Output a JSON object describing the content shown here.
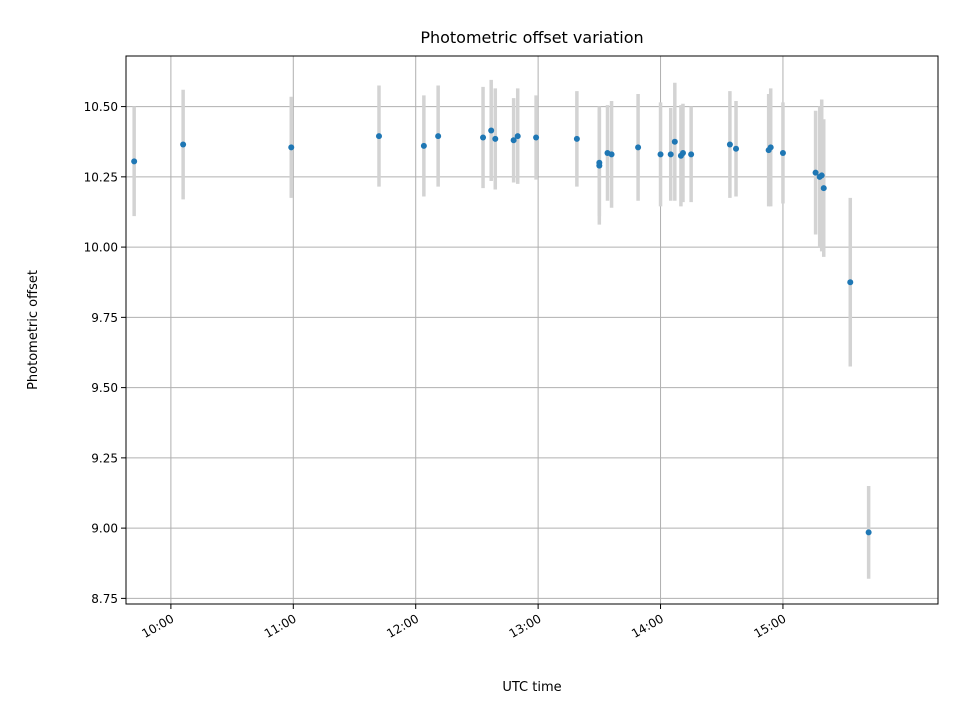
{
  "chart_data": {
    "type": "scatter",
    "title": "Photometric offset variation",
    "xlabel": "UTC time",
    "ylabel": "Photometric offset",
    "xlim": [
      "09:38",
      "16:16"
    ],
    "ylim": [
      8.73,
      10.68
    ],
    "x_ticks": [
      "10:00",
      "11:00",
      "12:00",
      "13:00",
      "14:00",
      "15:00"
    ],
    "y_ticks": [
      "8.75",
      "9.00",
      "9.25",
      "9.50",
      "9.75",
      "10.00",
      "10.25",
      "10.50"
    ],
    "grid": true,
    "colors": {
      "point": "#1f77b4",
      "errorbar": "#d3d3d3"
    },
    "points": [
      {
        "t": "09:42",
        "y": 10.305,
        "err": 0.195
      },
      {
        "t": "10:06",
        "y": 10.365,
        "err": 0.195
      },
      {
        "t": "10:59",
        "y": 10.355,
        "err": 0.18
      },
      {
        "t": "11:42",
        "y": 10.395,
        "err": 0.18
      },
      {
        "t": "12:04",
        "y": 10.36,
        "err": 0.18
      },
      {
        "t": "12:11",
        "y": 10.395,
        "err": 0.18
      },
      {
        "t": "12:33",
        "y": 10.39,
        "err": 0.18
      },
      {
        "t": "12:37",
        "y": 10.415,
        "err": 0.18
      },
      {
        "t": "12:39",
        "y": 10.385,
        "err": 0.18
      },
      {
        "t": "12:48",
        "y": 10.38,
        "err": 0.15
      },
      {
        "t": "12:50",
        "y": 10.395,
        "err": 0.17
      },
      {
        "t": "12:59",
        "y": 10.39,
        "err": 0.15
      },
      {
        "t": "13:19",
        "y": 10.385,
        "err": 0.17
      },
      {
        "t": "13:30",
        "y": 10.29,
        "err": 0.21
      },
      {
        "t": "13:30",
        "y": 10.3,
        "err": 0.19
      },
      {
        "t": "13:34",
        "y": 10.335,
        "err": 0.17
      },
      {
        "t": "13:36",
        "y": 10.33,
        "err": 0.19
      },
      {
        "t": "13:49",
        "y": 10.355,
        "err": 0.19
      },
      {
        "t": "14:00",
        "y": 10.33,
        "err": 0.185
      },
      {
        "t": "14:05",
        "y": 10.33,
        "err": 0.165
      },
      {
        "t": "14:07",
        "y": 10.375,
        "err": 0.21
      },
      {
        "t": "14:10",
        "y": 10.325,
        "err": 0.18
      },
      {
        "t": "14:11",
        "y": 10.335,
        "err": 0.175
      },
      {
        "t": "14:15",
        "y": 10.33,
        "err": 0.17
      },
      {
        "t": "14:34",
        "y": 10.365,
        "err": 0.19
      },
      {
        "t": "14:37",
        "y": 10.35,
        "err": 0.17
      },
      {
        "t": "14:53",
        "y": 10.345,
        "err": 0.2
      },
      {
        "t": "14:54",
        "y": 10.355,
        "err": 0.21
      },
      {
        "t": "15:00",
        "y": 10.335,
        "err": 0.18
      },
      {
        "t": "15:16",
        "y": 10.265,
        "err": 0.22
      },
      {
        "t": "15:18",
        "y": 10.25,
        "err": 0.25
      },
      {
        "t": "15:19",
        "y": 10.255,
        "err": 0.27
      },
      {
        "t": "15:20",
        "y": 10.21,
        "err": 0.245
      },
      {
        "t": "15:33",
        "y": 9.875,
        "err": 0.3
      },
      {
        "t": "15:42",
        "y": 8.985,
        "err": 0.165
      }
    ]
  }
}
